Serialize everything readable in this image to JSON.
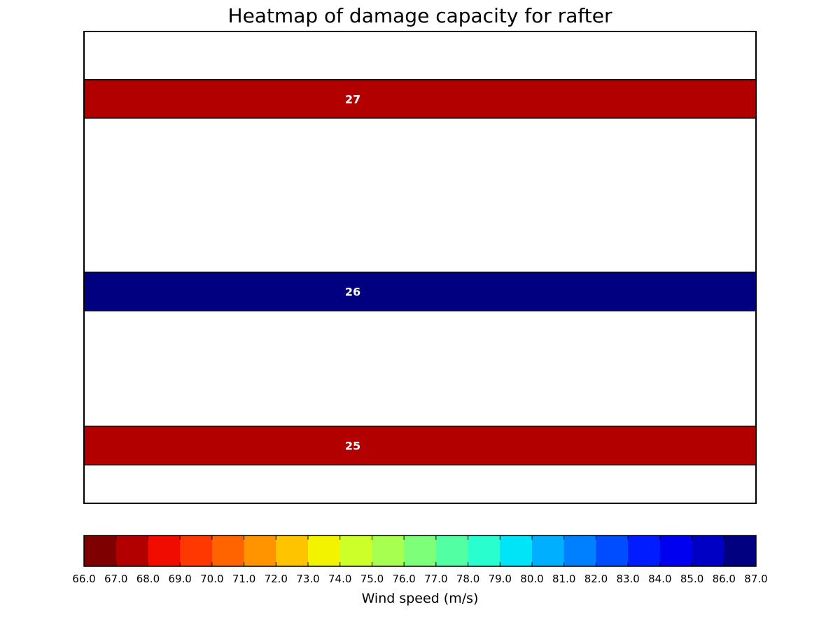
{
  "chart_data": {
    "type": "heatmap",
    "title": "Heatmap of damage capacity for rafter",
    "y_range": [
      0,
      12.25
    ],
    "rows": [
      {
        "label": "27",
        "y_center": 10.5,
        "height": 1.0,
        "value": 67.0,
        "color": "#b20000"
      },
      {
        "label": "26",
        "y_center": 5.5,
        "height": 1.0,
        "value": 86.0,
        "color": "#000080"
      },
      {
        "label": "25",
        "y_center": 1.5,
        "height": 1.0,
        "value": 67.0,
        "color": "#b20000"
      }
    ],
    "colorbar": {
      "label": "Wind speed (m/s)",
      "range": [
        66.0,
        87.0
      ],
      "ticks": [
        "66.0",
        "67.0",
        "68.0",
        "69.0",
        "70.0",
        "71.0",
        "72.0",
        "73.0",
        "74.0",
        "75.0",
        "76.0",
        "77.0",
        "78.0",
        "79.0",
        "80.0",
        "81.0",
        "82.0",
        "83.0",
        "84.0",
        "85.0",
        "86.0",
        "87.0"
      ],
      "colors": [
        "#7f0000",
        "#b20000",
        "#f00d00",
        "#ff3700",
        "#ff6400",
        "#ff9400",
        "#ffc400",
        "#f3f300",
        "#cdff29",
        "#a7ff4f",
        "#7dff7a",
        "#53ffa3",
        "#29ffce",
        "#00e4f8",
        "#00b0ff",
        "#0080ff",
        "#004cff",
        "#001cff",
        "#0000f1",
        "#0000c4",
        "#000080"
      ]
    }
  }
}
